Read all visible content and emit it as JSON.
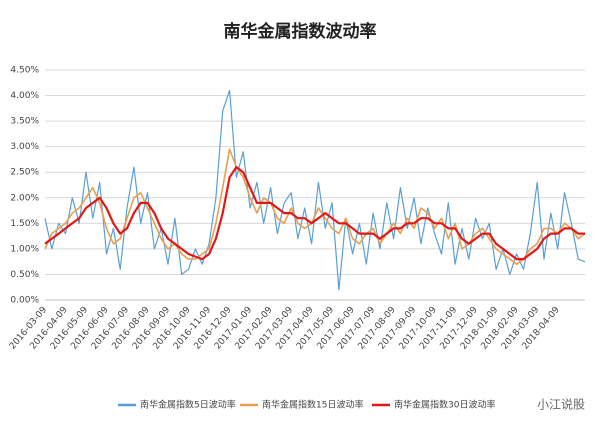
{
  "chart_data": {
    "type": "line",
    "title": "南华金属指数波动率",
    "categories": [
      "2016-03-09",
      null,
      null,
      "2016-04-09",
      null,
      null,
      "2016-05-09",
      null,
      null,
      "2016-06-09",
      null,
      null,
      "2016-07-09",
      null,
      null,
      "2016-08-09",
      null,
      null,
      "2016-09-09",
      null,
      null,
      "2016-10-09",
      null,
      null,
      "2016-11-09",
      null,
      null,
      "2016-12-09",
      null,
      null,
      "2017-01-09",
      null,
      null,
      "2017-02-09",
      null,
      null,
      "2017-03-09",
      null,
      null,
      "2017-04-09",
      null,
      null,
      "2017-05-09",
      null,
      null,
      "2017-06-09",
      null,
      null,
      "2017-07-09",
      null,
      null,
      "2017-08-09",
      null,
      null,
      "2017-09-09",
      null,
      null,
      "2017-10-09",
      null,
      null,
      "2017-11-09",
      null,
      null,
      "2017-12-09",
      null,
      null,
      "2018-01-09",
      null,
      null,
      "2018-02-09",
      null,
      null,
      "2018-03-09",
      null,
      null,
      "2018-04-09",
      null,
      null,
      null,
      null
    ],
    "series": [
      {
        "name": "南华金属指数5日波动率",
        "color": "#5a9fd4",
        "width": 1.2,
        "values": [
          1.6,
          1.0,
          1.5,
          1.3,
          2.0,
          1.5,
          2.5,
          1.6,
          2.3,
          0.9,
          1.4,
          0.6,
          1.8,
          2.6,
          1.5,
          2.1,
          1.0,
          1.4,
          0.7,
          1.6,
          0.5,
          0.6,
          1.0,
          0.7,
          1.1,
          2.0,
          3.7,
          4.1,
          2.4,
          2.9,
          1.8,
          2.3,
          1.5,
          2.2,
          1.3,
          1.9,
          2.1,
          1.2,
          1.8,
          1.1,
          2.3,
          1.4,
          1.9,
          0.2,
          1.6,
          0.9,
          1.5,
          0.7,
          1.7,
          1.0,
          1.9,
          1.2,
          2.2,
          1.4,
          2.0,
          1.1,
          1.8,
          1.3,
          0.9,
          1.9,
          0.7,
          1.4,
          0.8,
          1.6,
          1.2,
          1.5,
          0.6,
          1.0,
          0.5,
          0.9,
          0.6,
          1.3,
          2.3,
          0.8,
          1.7,
          1.0,
          2.1,
          1.5,
          0.8,
          0.75
        ]
      },
      {
        "name": "南华金属指数15日波动率",
        "color": "#e8a050",
        "width": 1.6,
        "values": [
          1.0,
          1.3,
          1.4,
          1.5,
          1.7,
          1.8,
          2.0,
          2.2,
          1.9,
          1.4,
          1.1,
          1.2,
          1.6,
          2.0,
          2.1,
          1.8,
          1.5,
          1.2,
          1.0,
          1.1,
          0.9,
          0.8,
          0.8,
          0.9,
          1.0,
          1.5,
          2.2,
          2.95,
          2.6,
          2.4,
          2.0,
          1.7,
          2.0,
          1.9,
          1.6,
          1.5,
          1.8,
          1.5,
          1.4,
          1.5,
          1.8,
          1.6,
          1.4,
          1.3,
          1.6,
          1.2,
          1.1,
          1.3,
          1.4,
          1.1,
          1.3,
          1.5,
          1.3,
          1.6,
          1.4,
          1.8,
          1.7,
          1.4,
          1.6,
          1.2,
          1.5,
          1.0,
          1.1,
          1.3,
          1.4,
          1.2,
          1.0,
          0.9,
          0.8,
          0.7,
          0.8,
          1.0,
          1.1,
          1.4,
          1.4,
          1.3,
          1.5,
          1.4,
          1.2,
          1.3
        ]
      },
      {
        "name": "南华金属指数30日波动率",
        "color": "#e01818",
        "width": 2.2,
        "values": [
          1.1,
          1.2,
          1.3,
          1.4,
          1.5,
          1.6,
          1.8,
          1.9,
          2.0,
          1.8,
          1.5,
          1.3,
          1.4,
          1.7,
          1.9,
          1.9,
          1.7,
          1.4,
          1.2,
          1.1,
          1.0,
          0.9,
          0.85,
          0.8,
          0.9,
          1.2,
          1.7,
          2.4,
          2.6,
          2.5,
          2.2,
          1.9,
          1.9,
          1.9,
          1.8,
          1.7,
          1.7,
          1.6,
          1.6,
          1.5,
          1.6,
          1.7,
          1.6,
          1.5,
          1.5,
          1.4,
          1.3,
          1.3,
          1.3,
          1.2,
          1.3,
          1.4,
          1.4,
          1.5,
          1.5,
          1.6,
          1.6,
          1.5,
          1.5,
          1.4,
          1.4,
          1.2,
          1.1,
          1.2,
          1.3,
          1.3,
          1.1,
          1.0,
          0.9,
          0.8,
          0.8,
          0.9,
          1.0,
          1.2,
          1.3,
          1.3,
          1.4,
          1.4,
          1.3,
          1.3
        ]
      }
    ],
    "ylim": [
      0,
      4.5
    ],
    "yticks": [
      {
        "value": 0,
        "label": "0.00%"
      },
      {
        "value": 0.5,
        "label": "0.50%"
      },
      {
        "value": 1,
        "label": "1.00%"
      },
      {
        "value": 1.5,
        "label": "1.50%"
      },
      {
        "value": 2,
        "label": "2.00%"
      },
      {
        "value": 2.5,
        "label": "2.50%"
      },
      {
        "value": 3,
        "label": "3.00%"
      },
      {
        "value": 3.5,
        "label": "3.50%"
      },
      {
        "value": 4,
        "label": "4.00%"
      },
      {
        "value": 4.5,
        "label": "4.50%"
      }
    ],
    "grid": true,
    "watermark": "小江说股"
  }
}
